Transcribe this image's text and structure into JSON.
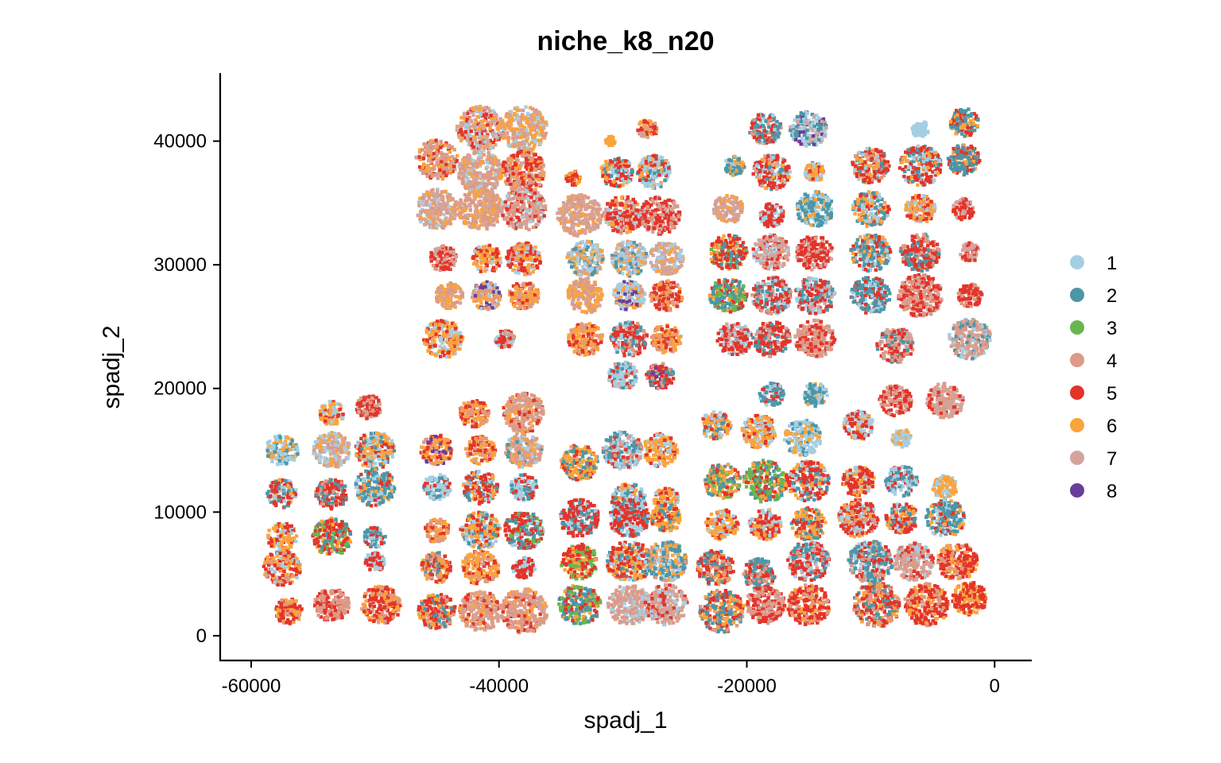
{
  "chart_data": {
    "type": "scatter",
    "title": "niche_k8_n20",
    "xlabel": "spadj_1",
    "ylabel": "spadj_2",
    "xlim": [
      -62500,
      3000
    ],
    "ylim": [
      -2000,
      45500
    ],
    "x_ticks": [
      -60000,
      -40000,
      -20000,
      0
    ],
    "x_tick_labels": [
      "-60000",
      "-40000",
      "-20000",
      "0"
    ],
    "y_ticks": [
      0,
      10000,
      20000,
      30000,
      40000
    ],
    "y_tick_labels": [
      "0",
      "10000",
      "20000",
      "30000",
      "40000"
    ],
    "grid": false,
    "legend_position": "right",
    "series": [
      {
        "name": "1",
        "color": "#a6cee3"
      },
      {
        "name": "2",
        "color": "#4b97a8"
      },
      {
        "name": "3",
        "color": "#6ab64e"
      },
      {
        "name": "4",
        "color": "#dd9a86"
      },
      {
        "name": "5",
        "color": "#e3342a"
      },
      {
        "name": "6",
        "color": "#fba33d"
      },
      {
        "name": "7",
        "color": "#d4a49c"
      },
      {
        "name": "8",
        "color": "#6a3d9a"
      }
    ],
    "tissue_sections_approx": [
      [
        -45,
        38.5,
        1.7,
        [
          4,
          6,
          5,
          7
        ]
      ],
      [
        -41.5,
        41,
        1.9,
        [
          7,
          5,
          6,
          1
        ]
      ],
      [
        -38,
        41,
        1.9,
        [
          6,
          4,
          1,
          7
        ]
      ],
      [
        -41.5,
        37.5,
        1.8,
        [
          4,
          7,
          6,
          1
        ]
      ],
      [
        -38,
        37.5,
        1.8,
        [
          5,
          4,
          7,
          6
        ]
      ],
      [
        -45,
        34.5,
        1.7,
        [
          7,
          4,
          6,
          1
        ]
      ],
      [
        -41.5,
        34.5,
        1.8,
        [
          4,
          7,
          6
        ]
      ],
      [
        -38,
        34.5,
        1.8,
        [
          4,
          7,
          5,
          1
        ]
      ],
      [
        -44.5,
        30.5,
        1.1,
        [
          5,
          7,
          4
        ]
      ],
      [
        -41,
        30.5,
        1.2,
        [
          6,
          5,
          1
        ]
      ],
      [
        -38,
        30.5,
        1.4,
        [
          5,
          6,
          1,
          4
        ]
      ],
      [
        -44,
        27.5,
        1.1,
        [
          6,
          4,
          7
        ]
      ],
      [
        -41,
        27.5,
        1.2,
        [
          4,
          6,
          8,
          1
        ]
      ],
      [
        -38,
        27.5,
        1.2,
        [
          6,
          4,
          5
        ]
      ],
      [
        -44.5,
        24,
        1.6,
        [
          6,
          1,
          5
        ]
      ],
      [
        -39.5,
        24,
        0.8,
        [
          5,
          4,
          1
        ]
      ],
      [
        -34,
        37,
        0.6,
        [
          5,
          6
        ]
      ],
      [
        -30.5,
        37.5,
        1.3,
        [
          5,
          6,
          2,
          1
        ]
      ],
      [
        -27.5,
        37.5,
        1.4,
        [
          1,
          2,
          5,
          6
        ]
      ],
      [
        -28,
        41,
        0.8,
        [
          5,
          7,
          6
        ]
      ],
      [
        -31,
        40,
        0.4,
        [
          6
        ]
      ],
      [
        -33.5,
        34,
        1.8,
        [
          7,
          4,
          6
        ]
      ],
      [
        -30,
        34,
        1.6,
        [
          5,
          6,
          7,
          1
        ]
      ],
      [
        -27,
        34,
        1.6,
        [
          5,
          7,
          4
        ]
      ],
      [
        -33,
        30.5,
        1.5,
        [
          1,
          6,
          7,
          2
        ]
      ],
      [
        -29.5,
        30.5,
        1.5,
        [
          1,
          7,
          2,
          6
        ]
      ],
      [
        -26.5,
        30.5,
        1.4,
        [
          7,
          1,
          6
        ]
      ],
      [
        -33,
        27.5,
        1.5,
        [
          6,
          4,
          7
        ]
      ],
      [
        -29.5,
        27.5,
        1.3,
        [
          1,
          6,
          4,
          8
        ]
      ],
      [
        -26.5,
        27.5,
        1.3,
        [
          5,
          4,
          6
        ]
      ],
      [
        -33,
        24,
        1.4,
        [
          6,
          5,
          4
        ]
      ],
      [
        -29.5,
        24,
        1.5,
        [
          5,
          4,
          1,
          2
        ]
      ],
      [
        -26.5,
        24,
        1.2,
        [
          6,
          5,
          4
        ]
      ],
      [
        -30,
        21,
        1.2,
        [
          1,
          2,
          5,
          4
        ]
      ],
      [
        -27,
        21,
        1.1,
        [
          5,
          2,
          8,
          4
        ]
      ],
      [
        -18.5,
        41,
        1.3,
        [
          2,
          5,
          4,
          1
        ]
      ],
      [
        -15,
        41,
        1.5,
        [
          1,
          2,
          8,
          7
        ]
      ],
      [
        -21,
        38,
        0.8,
        [
          2,
          1,
          6
        ]
      ],
      [
        -18,
        37.5,
        1.5,
        [
          5,
          1,
          2,
          6,
          7
        ]
      ],
      [
        -14.5,
        37.5,
        0.8,
        [
          6,
          1,
          5
        ]
      ],
      [
        -21.5,
        34.5,
        1.2,
        [
          7,
          4,
          6
        ]
      ],
      [
        -18,
        34,
        1.0,
        [
          5,
          1
        ]
      ],
      [
        -14.5,
        34.5,
        1.5,
        [
          2,
          1,
          6
        ]
      ],
      [
        -21.5,
        31,
        1.5,
        [
          5,
          2,
          3,
          6
        ]
      ],
      [
        -18,
        31,
        1.5,
        [
          7,
          5,
          4,
          1
        ]
      ],
      [
        -14.5,
        31,
        1.5,
        [
          5,
          7
        ]
      ],
      [
        -21.5,
        27.5,
        1.5,
        [
          2,
          3,
          5,
          6
        ]
      ],
      [
        -18,
        27.5,
        1.6,
        [
          5,
          4,
          2,
          1
        ]
      ],
      [
        -14.5,
        27.5,
        1.6,
        [
          5,
          1,
          2,
          7
        ]
      ],
      [
        -21,
        24,
        1.4,
        [
          5,
          7,
          1
        ]
      ],
      [
        -18,
        24,
        1.5,
        [
          5,
          2,
          7
        ]
      ],
      [
        -14.5,
        24,
        1.6,
        [
          4,
          5,
          7
        ]
      ],
      [
        -10,
        38,
        1.5,
        [
          5,
          6,
          4,
          1,
          2
        ]
      ],
      [
        -6,
        38,
        1.7,
        [
          5,
          1,
          2,
          6
        ]
      ],
      [
        -2.5,
        38.5,
        1.3,
        [
          2,
          5,
          6
        ]
      ],
      [
        -6,
        41,
        0.7,
        [
          1
        ]
      ],
      [
        -2.5,
        41.5,
        1.2,
        [
          2,
          6,
          5
        ]
      ],
      [
        -10,
        34.5,
        1.5,
        [
          6,
          2,
          1,
          5
        ]
      ],
      [
        -6,
        34.5,
        1.2,
        [
          6,
          5,
          1,
          4
        ]
      ],
      [
        -2.5,
        34.5,
        0.9,
        [
          5,
          7
        ]
      ],
      [
        -10,
        31,
        1.6,
        [
          2,
          5,
          6,
          1
        ]
      ],
      [
        -6,
        31,
        1.6,
        [
          5,
          2,
          4
        ]
      ],
      [
        -2,
        31,
        0.8,
        [
          7,
          5
        ]
      ],
      [
        -10,
        27.5,
        1.6,
        [
          2,
          5,
          1
        ]
      ],
      [
        -6,
        27.5,
        1.8,
        [
          5,
          4,
          7
        ]
      ],
      [
        -2,
        27.5,
        1.0,
        [
          5,
          4
        ]
      ],
      [
        -8,
        23.5,
        1.5,
        [
          5,
          7,
          4,
          2
        ]
      ],
      [
        -2,
        24,
        1.7,
        [
          4,
          2,
          1,
          7
        ]
      ],
      [
        -57.5,
        15,
        1.3,
        [
          1,
          6,
          2
        ]
      ],
      [
        -53.5,
        18,
        1.0,
        [
          6,
          1,
          5
        ]
      ],
      [
        -50.5,
        18.5,
        1.0,
        [
          5,
          7,
          4
        ]
      ],
      [
        -53.5,
        15,
        1.5,
        [
          1,
          7,
          4,
          6
        ]
      ],
      [
        -50,
        15,
        1.6,
        [
          6,
          1,
          5,
          2
        ]
      ],
      [
        -57.5,
        11.5,
        1.2,
        [
          5,
          2,
          1,
          6
        ]
      ],
      [
        -53.5,
        11.5,
        1.3,
        [
          5,
          2,
          4
        ]
      ],
      [
        -50,
        12,
        1.6,
        [
          2,
          1,
          5,
          6
        ]
      ],
      [
        -57.5,
        8,
        1.2,
        [
          6,
          5,
          1
        ]
      ],
      [
        -53.5,
        8,
        1.6,
        [
          5,
          2,
          3,
          6
        ]
      ],
      [
        -50,
        8,
        0.9,
        [
          2,
          5,
          1
        ]
      ],
      [
        -57.5,
        5.5,
        1.5,
        [
          5,
          6,
          4,
          1
        ]
      ],
      [
        -50,
        6,
        0.8,
        [
          5,
          1
        ]
      ],
      [
        -57,
        2,
        1.1,
        [
          5,
          6,
          4
        ]
      ],
      [
        -53.5,
        2.5,
        1.4,
        [
          4,
          5
        ]
      ],
      [
        -49.5,
        2.5,
        1.6,
        [
          5,
          4,
          6
        ]
      ],
      [
        -42,
        18,
        1.2,
        [
          6,
          5,
          4
        ]
      ],
      [
        -38,
        18,
        1.7,
        [
          4,
          5,
          7,
          6
        ]
      ],
      [
        -45,
        15,
        1.3,
        [
          6,
          5,
          8,
          4
        ]
      ],
      [
        -41.5,
        15,
        1.2,
        [
          6,
          4,
          5
        ]
      ],
      [
        -38,
        15,
        1.5,
        [
          4,
          6,
          1,
          2
        ]
      ],
      [
        -45,
        12,
        1.1,
        [
          1,
          2,
          5
        ]
      ],
      [
        -41.5,
        12,
        1.4,
        [
          5,
          1,
          6,
          2
        ]
      ],
      [
        -38,
        12,
        1.1,
        [
          1,
          5,
          2
        ]
      ],
      [
        -45,
        8.5,
        1.0,
        [
          6,
          5,
          4
        ]
      ],
      [
        -41.5,
        8.5,
        1.6,
        [
          6,
          5,
          1,
          2
        ]
      ],
      [
        -38,
        8.5,
        1.6,
        [
          5,
          2,
          3,
          1
        ]
      ],
      [
        -45,
        5.5,
        1.3,
        [
          5,
          6,
          4,
          2
        ]
      ],
      [
        -41.5,
        5.5,
        1.5,
        [
          6,
          4,
          5
        ]
      ],
      [
        -38,
        5.5,
        0.9,
        [
          5,
          1
        ]
      ],
      [
        -45,
        2,
        1.5,
        [
          5,
          4,
          6,
          2
        ]
      ],
      [
        -41.5,
        2,
        1.7,
        [
          4,
          5,
          6,
          7
        ]
      ],
      [
        -38,
        2,
        1.9,
        [
          4,
          7,
          5,
          6
        ]
      ],
      [
        -33.5,
        14,
        1.5,
        [
          6,
          2,
          5
        ]
      ],
      [
        -30,
        15,
        1.6,
        [
          1,
          2,
          5,
          4
        ]
      ],
      [
        -27,
        15,
        1.4,
        [
          6,
          1,
          5
        ]
      ],
      [
        -29.5,
        11,
        1.4,
        [
          1,
          2,
          5,
          6
        ]
      ],
      [
        -26.5,
        11,
        1.0,
        [
          6,
          1,
          5
        ]
      ],
      [
        -33.5,
        9.5,
        1.6,
        [
          5,
          2,
          1
        ]
      ],
      [
        -29.5,
        9.5,
        1.6,
        [
          5,
          1,
          2
        ]
      ],
      [
        -26.5,
        9.5,
        1.2,
        [
          6,
          2,
          5
        ]
      ],
      [
        -33.5,
        6,
        1.5,
        [
          5,
          3,
          6
        ]
      ],
      [
        -29.5,
        6,
        1.8,
        [
          5,
          6,
          2,
          1
        ]
      ],
      [
        -26.5,
        6,
        1.7,
        [
          2,
          4,
          6,
          1
        ]
      ],
      [
        -33.5,
        2.5,
        1.7,
        [
          2,
          3,
          5,
          6
        ]
      ],
      [
        -29.5,
        2.5,
        1.7,
        [
          4,
          7,
          1
        ]
      ],
      [
        -26.5,
        2.5,
        1.7,
        [
          7,
          4,
          5,
          1
        ]
      ],
      [
        -22.5,
        17,
        1.2,
        [
          6,
          2,
          1,
          5
        ]
      ],
      [
        -19,
        16.5,
        1.4,
        [
          6,
          1,
          5
        ]
      ],
      [
        -15.5,
        16,
        1.5,
        [
          1,
          2,
          6
        ]
      ],
      [
        -18,
        19.5,
        1.0,
        [
          2,
          1,
          5
        ]
      ],
      [
        -14.5,
        19.5,
        1.0,
        [
          2,
          1,
          6
        ]
      ],
      [
        -22,
        12.5,
        1.5,
        [
          6,
          2,
          3,
          5
        ]
      ],
      [
        -18.5,
        12.5,
        1.8,
        [
          3,
          2,
          5,
          6
        ]
      ],
      [
        -15,
        12.5,
        1.7,
        [
          5,
          2,
          6,
          1
        ]
      ],
      [
        -22,
        9,
        1.3,
        [
          6,
          5,
          1
        ]
      ],
      [
        -18.5,
        9,
        1.3,
        [
          5,
          6,
          1
        ]
      ],
      [
        -15,
        9,
        1.4,
        [
          6,
          2,
          5
        ]
      ],
      [
        -22.5,
        5.5,
        1.5,
        [
          5,
          2,
          4,
          6
        ]
      ],
      [
        -19,
        5,
        1.3,
        [
          2,
          4,
          5
        ]
      ],
      [
        -15,
        6,
        1.7,
        [
          5,
          2,
          1,
          4
        ]
      ],
      [
        -22,
        2,
        1.8,
        [
          2,
          5,
          4,
          6
        ]
      ],
      [
        -18.5,
        2.5,
        1.6,
        [
          5,
          4,
          7
        ]
      ],
      [
        -15,
        2.5,
        1.7,
        [
          5,
          4,
          6
        ]
      ],
      [
        -11,
        17,
        1.2,
        [
          1,
          6,
          5
        ]
      ],
      [
        -7.5,
        16,
        0.8,
        [
          1,
          6
        ]
      ],
      [
        -11,
        12.5,
        1.3,
        [
          5,
          6,
          1
        ]
      ],
      [
        -7.5,
        12.5,
        1.3,
        [
          1,
          2,
          5
        ]
      ],
      [
        -4,
        12,
        1.0,
        [
          6,
          1
        ]
      ],
      [
        -11,
        9.5,
        1.6,
        [
          5,
          1,
          6,
          4
        ]
      ],
      [
        -7.5,
        9.5,
        1.3,
        [
          5,
          2,
          6,
          1
        ]
      ],
      [
        -4,
        9.5,
        1.6,
        [
          2,
          5,
          6,
          1
        ]
      ],
      [
        -10,
        6,
        1.8,
        [
          2,
          5,
          4,
          1
        ]
      ],
      [
        -6.5,
        6,
        1.6,
        [
          7,
          4,
          5,
          1
        ]
      ],
      [
        -3,
        6,
        1.6,
        [
          5,
          6,
          4
        ]
      ],
      [
        -9.5,
        2.5,
        1.9,
        [
          5,
          4,
          6,
          2
        ]
      ],
      [
        -5.5,
        2.5,
        1.8,
        [
          5,
          4,
          6
        ]
      ],
      [
        -2,
        3,
        1.4,
        [
          5,
          6
        ]
      ],
      [
        -8,
        19,
        1.3,
        [
          5,
          7,
          4
        ]
      ],
      [
        -4,
        19,
        1.5,
        [
          7,
          4,
          5
        ]
      ]
    ]
  }
}
